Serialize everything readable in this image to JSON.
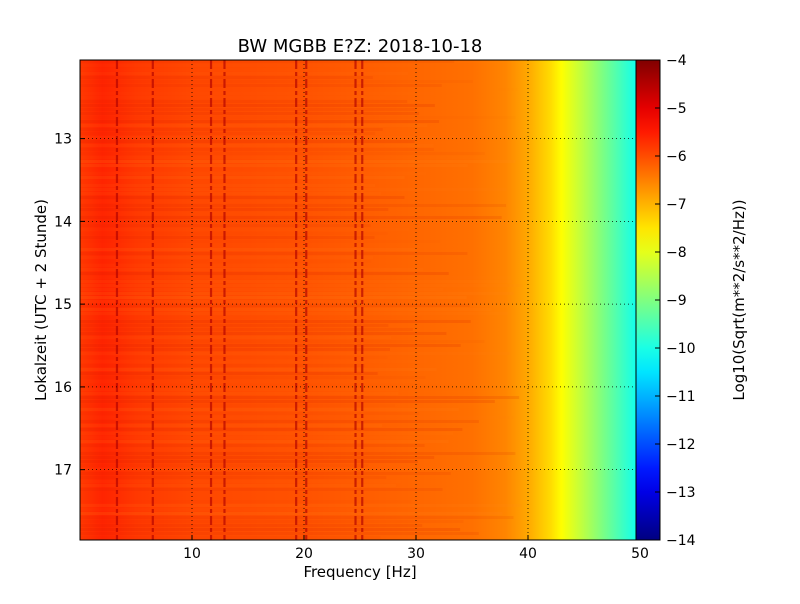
{
  "chart_data": {
    "type": "heatmap",
    "title": "BW MGBB E?Z: 2018-10-18",
    "xlabel": "Frequency [Hz]",
    "ylabel": "Lokalzeit (UTC + 2 Stunde)",
    "xlim": [
      0,
      50
    ],
    "ylim": [
      17.85,
      12.05
    ],
    "x_ticks": [
      10,
      20,
      30,
      40,
      50
    ],
    "x_tick_labels": [
      "10",
      "20",
      "30",
      "40",
      "50"
    ],
    "y_ticks": [
      13,
      14,
      15,
      16,
      17
    ],
    "y_tick_labels": [
      "13",
      "14",
      "15",
      "16",
      "17"
    ],
    "grid": true,
    "colormap": "jet",
    "colorbar": {
      "label": "Log10(Sqrt(m**2/s**2/Hz))",
      "range": [
        -14,
        -4
      ],
      "ticks": [
        -4,
        -5,
        -6,
        -7,
        -8,
        -9,
        -10,
        -11,
        -12,
        -13,
        -14
      ],
      "tick_labels": [
        "−4",
        "−5",
        "−6",
        "−7",
        "−8",
        "−9",
        "−10",
        "−11",
        "−12",
        "−13",
        "−14"
      ]
    },
    "profile": {
      "frequency_hz": [
        0,
        2,
        5,
        10,
        15,
        20,
        25,
        30,
        35,
        38,
        40,
        42,
        44,
        46,
        48,
        50
      ],
      "log10_amplitude": [
        -5.8,
        -5.6,
        -5.8,
        -5.95,
        -6.0,
        -6.05,
        -6.15,
        -6.25,
        -6.35,
        -6.55,
        -6.9,
        -7.4,
        -8.1,
        -8.8,
        -9.5,
        -10.2
      ]
    },
    "spectral_lines_hz": [
      3.3,
      6.5,
      11.7,
      12.9,
      19.3,
      20.2,
      24.6,
      25.2
    ]
  }
}
